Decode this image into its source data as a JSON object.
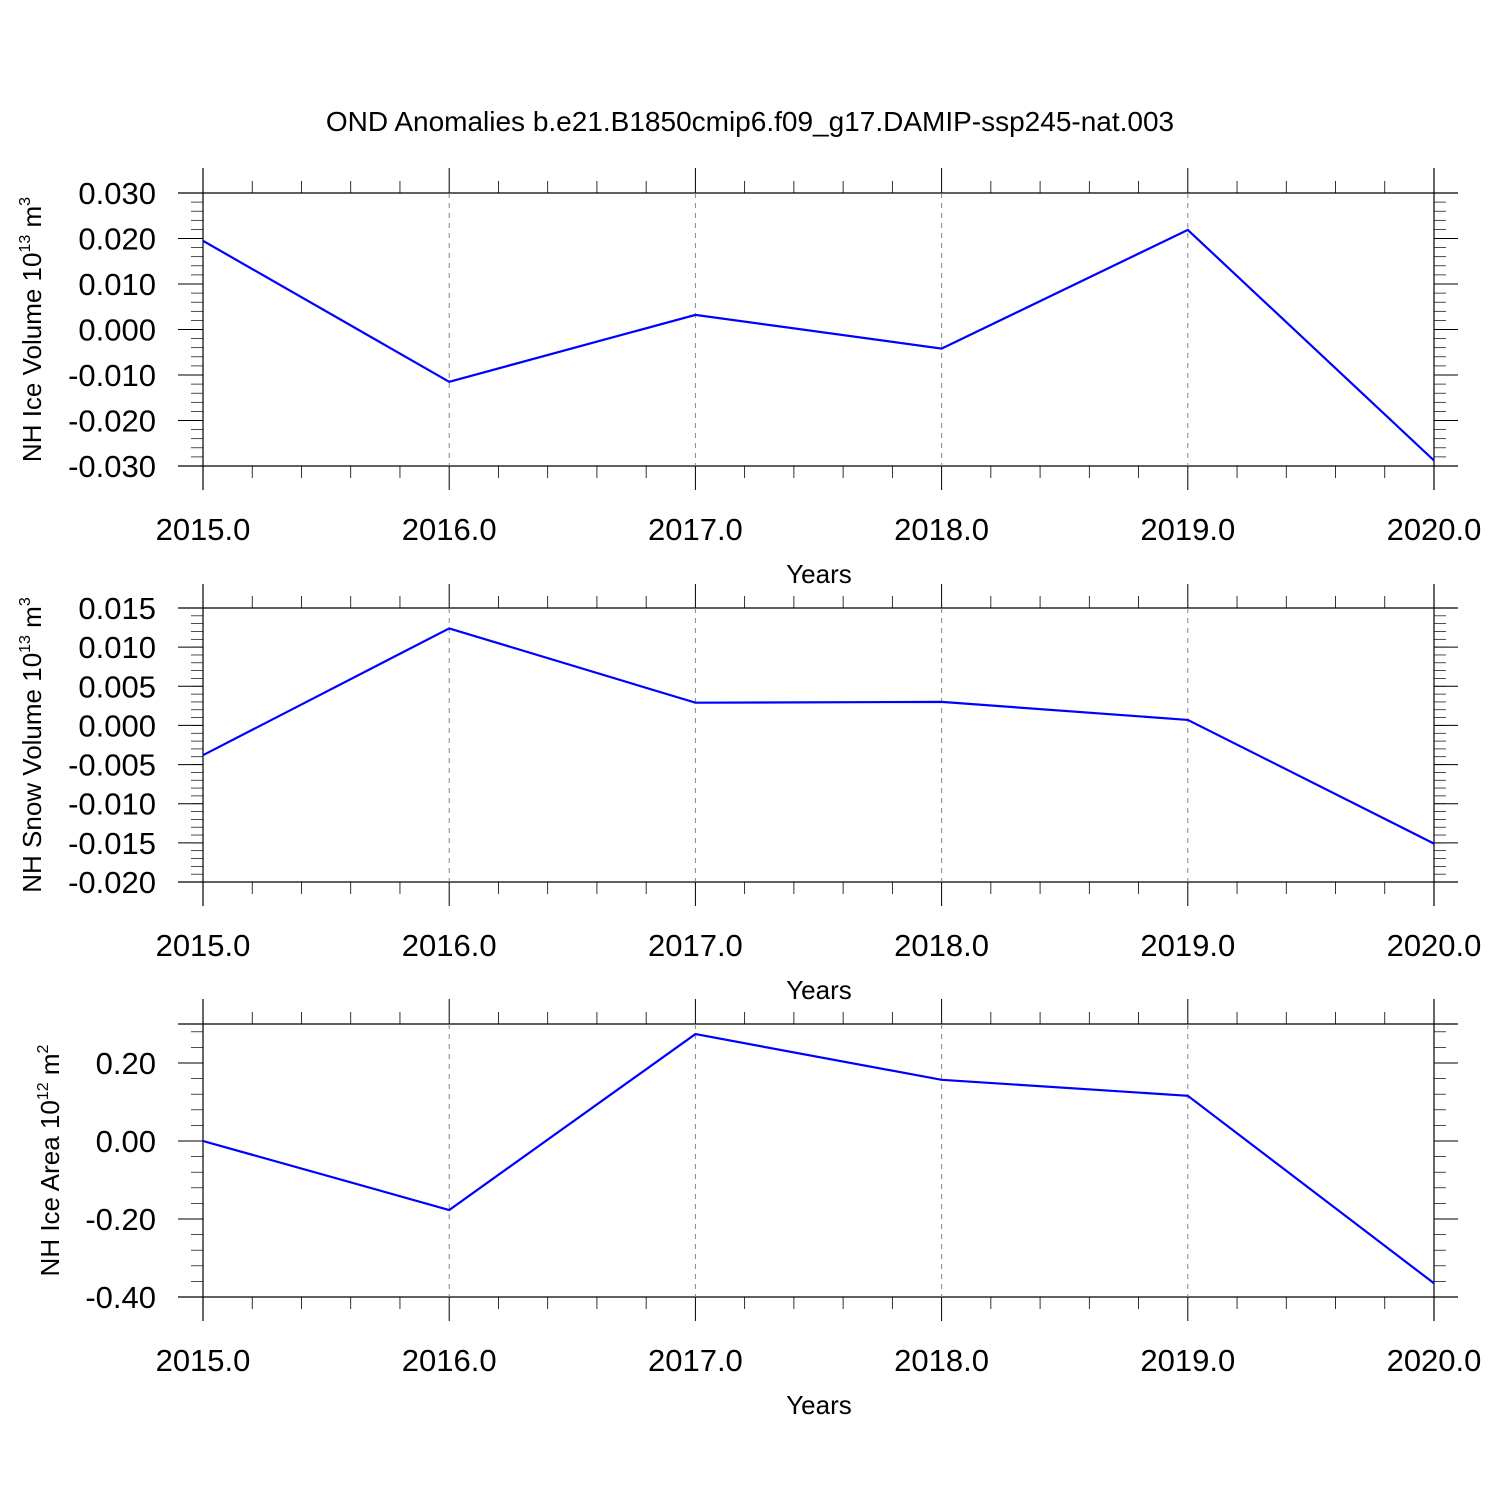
{
  "figure": {
    "title": "OND Anomalies b.e21.B1850cmip6.f09_g17.DAMIP-ssp245-nat.003",
    "line_color": "#0000ff",
    "grid_color": "#888888"
  },
  "chart_data": [
    {
      "type": "line",
      "title": "",
      "x": [
        2015,
        2016,
        2017,
        2018,
        2019,
        2020
      ],
      "series": [
        {
          "values": [
            0.0195,
            -0.0115,
            0.0032,
            -0.0042,
            0.0219,
            -0.0288
          ]
        }
      ],
      "xlabel": "Years",
      "ylabel_main": "NH Ice Volume 10",
      "ylabel_exp": "13",
      "ylabel_unit": " m",
      "ylabel_unit_exp": "3",
      "xlim": [
        2015,
        2020
      ],
      "ylim": [
        -0.03,
        0.03
      ],
      "xticks": [
        2015,
        2016,
        2017,
        2018,
        2019,
        2020
      ],
      "xtick_labels": [
        "2015.0",
        "2016.0",
        "2017.0",
        "2018.0",
        "2019.0",
        "2020.0"
      ],
      "yticks": [
        0.03,
        0.02,
        0.01,
        0.0,
        -0.01,
        -0.02,
        -0.03
      ],
      "ytick_labels": [
        "0.030",
        "0.020",
        "0.010",
        "0.000",
        "-0.010",
        "-0.020",
        "-0.030"
      ],
      "y_minor_step": 0.002,
      "x_minor_step": 0.2,
      "grid": "vertical-dashed"
    },
    {
      "type": "line",
      "title": "",
      "x": [
        2015,
        2016,
        2017,
        2018,
        2019,
        2020
      ],
      "series": [
        {
          "values": [
            -0.0038,
            0.0124,
            0.0029,
            0.003,
            0.0007,
            -0.0151
          ]
        }
      ],
      "xlabel": "Years",
      "ylabel_main": "NH Snow Volume 10",
      "ylabel_exp": "13",
      "ylabel_unit": " m",
      "ylabel_unit_exp": "3",
      "xlim": [
        2015,
        2020
      ],
      "ylim": [
        -0.02,
        0.015
      ],
      "xticks": [
        2015,
        2016,
        2017,
        2018,
        2019,
        2020
      ],
      "xtick_labels": [
        "2015.0",
        "2016.0",
        "2017.0",
        "2018.0",
        "2019.0",
        "2020.0"
      ],
      "yticks": [
        0.015,
        0.01,
        0.005,
        0.0,
        -0.005,
        -0.01,
        -0.015,
        -0.02
      ],
      "ytick_labels": [
        "0.015",
        "0.010",
        "0.005",
        "0.000",
        "-0.005",
        "-0.010",
        "-0.015",
        "-0.020"
      ],
      "y_minor_step": 0.001,
      "x_minor_step": 0.2,
      "grid": "vertical-dashed"
    },
    {
      "type": "line",
      "title": "",
      "x": [
        2015,
        2016,
        2017,
        2018,
        2019,
        2020
      ],
      "series": [
        {
          "values": [
            0.0,
            -0.177,
            0.274,
            0.157,
            0.116,
            -0.365
          ]
        }
      ],
      "xlabel": "Years",
      "ylabel_main": "NH Ice Area 10",
      "ylabel_exp": "12",
      "ylabel_unit": " m",
      "ylabel_unit_exp": "2",
      "xlim": [
        2015,
        2020
      ],
      "ylim": [
        -0.4,
        0.3
      ],
      "xticks": [
        2015,
        2016,
        2017,
        2018,
        2019,
        2020
      ],
      "xtick_labels": [
        "2015.0",
        "2016.0",
        "2017.0",
        "2018.0",
        "2019.0",
        "2020.0"
      ],
      "yticks": [
        0.2,
        0.0,
        -0.2,
        -0.4
      ],
      "ytick_labels": [
        "0.20",
        "0.00",
        "-0.20",
        "-0.40"
      ],
      "y_minor_step": 0.04,
      "x_minor_step": 0.2,
      "grid": "vertical-dashed"
    }
  ]
}
